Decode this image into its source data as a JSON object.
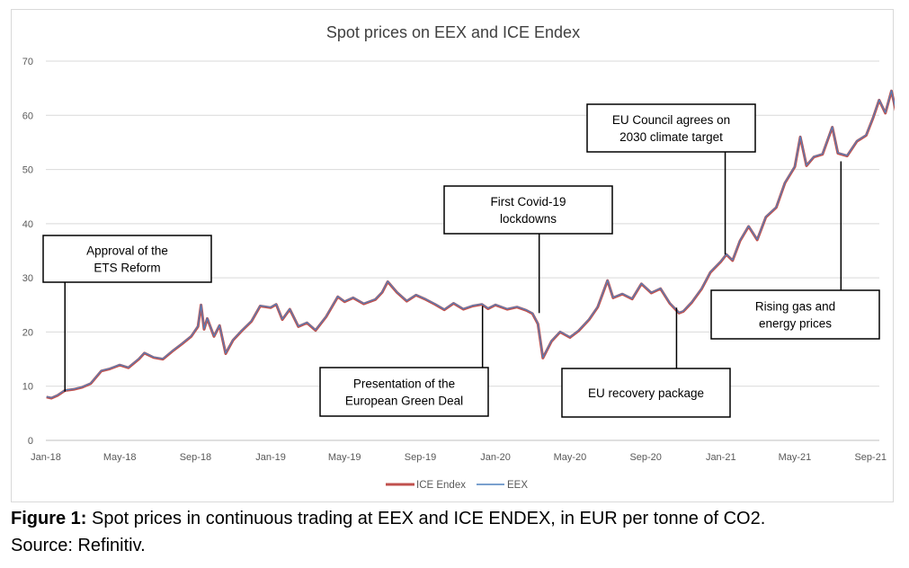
{
  "chart_data": {
    "type": "line",
    "title": "Spot prices on EEX and ICE Endex",
    "xlabel": "",
    "ylabel": "",
    "ylim": [
      0,
      70
    ],
    "yticks": [
      0,
      10,
      20,
      30,
      40,
      50,
      60,
      70
    ],
    "xlim": [
      "2018-01-02",
      "2021-11-01"
    ],
    "xticks": [
      {
        "date": "2018-01-01",
        "label": "Jan-18"
      },
      {
        "date": "2018-05-01",
        "label": "May-18"
      },
      {
        "date": "2018-09-01",
        "label": "Sep-18"
      },
      {
        "date": "2019-01-01",
        "label": "Jan-19"
      },
      {
        "date": "2019-05-01",
        "label": "May-19"
      },
      {
        "date": "2019-09-01",
        "label": "Sep-19"
      },
      {
        "date": "2020-01-01",
        "label": "Jan-20"
      },
      {
        "date": "2020-05-01",
        "label": "May-20"
      },
      {
        "date": "2020-09-01",
        "label": "Sep-20"
      },
      {
        "date": "2021-01-01",
        "label": "Jan-21"
      },
      {
        "date": "2021-05-01",
        "label": "May-21"
      },
      {
        "date": "2021-09-01",
        "label": "Sep-21"
      }
    ],
    "grid": true,
    "legend_position": "bottom",
    "series": [
      {
        "name": "ICE Endex",
        "color": "#c0504d"
      },
      {
        "name": "EEX",
        "color": "#4f81bd"
      }
    ],
    "points": [
      [
        "2018-01-02",
        8.0
      ],
      [
        "2018-01-10",
        7.8
      ],
      [
        "2018-01-20",
        8.3
      ],
      [
        "2018-02-01",
        9.2
      ],
      [
        "2018-02-15",
        9.4
      ],
      [
        "2018-03-01",
        9.8
      ],
      [
        "2018-03-15",
        10.5
      ],
      [
        "2018-04-01",
        12.8
      ],
      [
        "2018-04-15",
        13.2
      ],
      [
        "2018-05-01",
        13.9
      ],
      [
        "2018-05-15",
        13.4
      ],
      [
        "2018-06-01",
        15.0
      ],
      [
        "2018-06-10",
        16.1
      ],
      [
        "2018-06-25",
        15.3
      ],
      [
        "2018-07-10",
        15.0
      ],
      [
        "2018-07-25",
        16.4
      ],
      [
        "2018-08-10",
        17.8
      ],
      [
        "2018-08-25",
        19.2
      ],
      [
        "2018-09-05",
        21.0
      ],
      [
        "2018-09-10",
        25.0
      ],
      [
        "2018-09-15",
        20.5
      ],
      [
        "2018-09-20",
        22.5
      ],
      [
        "2018-10-01",
        19.2
      ],
      [
        "2018-10-10",
        21.2
      ],
      [
        "2018-10-20",
        16.0
      ],
      [
        "2018-11-01",
        18.5
      ],
      [
        "2018-11-15",
        20.2
      ],
      [
        "2018-12-01",
        22.0
      ],
      [
        "2018-12-15",
        24.8
      ],
      [
        "2019-01-01",
        24.5
      ],
      [
        "2019-01-10",
        25.1
      ],
      [
        "2019-01-20",
        22.3
      ],
      [
        "2019-02-01",
        24.2
      ],
      [
        "2019-02-15",
        21.0
      ],
      [
        "2019-03-01",
        21.7
      ],
      [
        "2019-03-15",
        20.3
      ],
      [
        "2019-04-01",
        22.8
      ],
      [
        "2019-04-20",
        26.5
      ],
      [
        "2019-05-01",
        25.6
      ],
      [
        "2019-05-15",
        26.3
      ],
      [
        "2019-06-01",
        25.2
      ],
      [
        "2019-06-20",
        26.0
      ],
      [
        "2019-07-01",
        27.3
      ],
      [
        "2019-07-10",
        29.3
      ],
      [
        "2019-07-25",
        27.3
      ],
      [
        "2019-08-10",
        25.7
      ],
      [
        "2019-08-25",
        26.8
      ],
      [
        "2019-09-10",
        26.0
      ],
      [
        "2019-09-25",
        25.1
      ],
      [
        "2019-10-10",
        24.1
      ],
      [
        "2019-10-25",
        25.3
      ],
      [
        "2019-11-10",
        24.2
      ],
      [
        "2019-11-25",
        24.8
      ],
      [
        "2019-12-10",
        25.1
      ],
      [
        "2019-12-20",
        24.3
      ],
      [
        "2020-01-01",
        25.0
      ],
      [
        "2020-01-20",
        24.2
      ],
      [
        "2020-02-05",
        24.6
      ],
      [
        "2020-02-20",
        24.0
      ],
      [
        "2020-03-01",
        23.4
      ],
      [
        "2020-03-10",
        21.5
      ],
      [
        "2020-03-18",
        15.2
      ],
      [
        "2020-04-01",
        18.3
      ],
      [
        "2020-04-15",
        20.0
      ],
      [
        "2020-05-01",
        19.0
      ],
      [
        "2020-05-15",
        20.2
      ],
      [
        "2020-06-01",
        22.3
      ],
      [
        "2020-06-15",
        24.6
      ],
      [
        "2020-07-01",
        29.5
      ],
      [
        "2020-07-10",
        26.3
      ],
      [
        "2020-07-25",
        27.0
      ],
      [
        "2020-08-10",
        26.1
      ],
      [
        "2020-08-25",
        28.9
      ],
      [
        "2020-09-10",
        27.2
      ],
      [
        "2020-09-25",
        28.0
      ],
      [
        "2020-10-10",
        25.3
      ],
      [
        "2020-10-25",
        23.5
      ],
      [
        "2020-11-01",
        23.8
      ],
      [
        "2020-11-15",
        25.5
      ],
      [
        "2020-12-01",
        28.0
      ],
      [
        "2020-12-15",
        31.0
      ],
      [
        "2021-01-01",
        33.0
      ],
      [
        "2021-01-10",
        34.3
      ],
      [
        "2021-01-20",
        33.2
      ],
      [
        "2021-02-01",
        36.8
      ],
      [
        "2021-02-15",
        39.5
      ],
      [
        "2021-03-01",
        37.0
      ],
      [
        "2021-03-15",
        41.2
      ],
      [
        "2021-04-01",
        43.0
      ],
      [
        "2021-04-15",
        47.5
      ],
      [
        "2021-05-01",
        50.5
      ],
      [
        "2021-05-10",
        56.0
      ],
      [
        "2021-05-20",
        50.7
      ],
      [
        "2021-06-01",
        52.3
      ],
      [
        "2021-06-15",
        52.8
      ],
      [
        "2021-07-01",
        57.8
      ],
      [
        "2021-07-10",
        53.0
      ],
      [
        "2021-07-25",
        52.5
      ],
      [
        "2021-08-10",
        55.2
      ],
      [
        "2021-08-25",
        56.3
      ],
      [
        "2021-09-05",
        59.5
      ],
      [
        "2021-09-15",
        62.8
      ],
      [
        "2021-09-25",
        60.4
      ],
      [
        "2021-10-05",
        64.5
      ],
      [
        "2021-10-15",
        59.3
      ],
      [
        "2021-10-25",
        61.0
      ],
      [
        "2021-11-01",
        60.2
      ]
    ],
    "annotations": [
      {
        "lines": [
          "Approval of the",
          "ETS Reform"
        ],
        "date": "2018-02-01",
        "value": 9.0
      },
      {
        "lines": [
          "Presentation of the",
          "European Green Deal"
        ],
        "date": "2019-12-11",
        "value": 24.8
      },
      {
        "lines": [
          "First Covid-19",
          "lockdowns"
        ],
        "date": "2020-03-12",
        "value": 23.5
      },
      {
        "lines": [
          "EU recovery package"
        ],
        "date": "2020-10-21",
        "value": 24.5
      },
      {
        "lines": [
          "EU Council agrees on",
          "2030 climate target"
        ],
        "date": "2021-01-08",
        "value": 34.3
      },
      {
        "lines": [
          "Rising gas and",
          "energy prices"
        ],
        "date": "2021-07-15",
        "value": 51.5
      }
    ]
  },
  "caption": {
    "label": "Figure 1:",
    "text": " Spot prices in continuous trading at EEX and ICE ENDEX, in EUR per tonne of CO2.",
    "source": "Source: Refinitiv."
  }
}
